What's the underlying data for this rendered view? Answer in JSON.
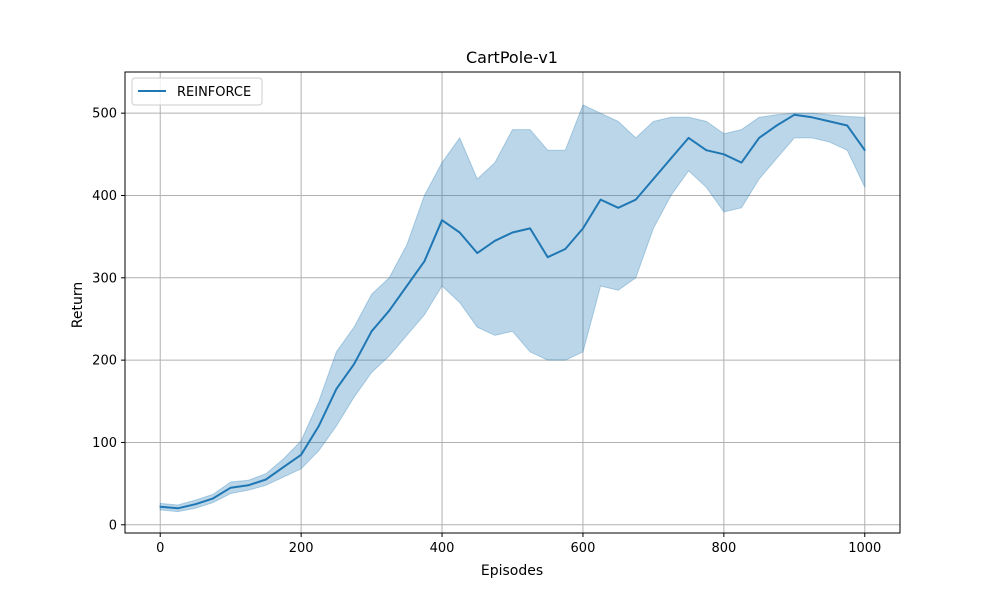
{
  "chart_data": {
    "type": "line",
    "title": "CartPole-v1",
    "xlabel": "Episodes",
    "ylabel": "Return",
    "xlim": [
      -50,
      1050
    ],
    "ylim": [
      -10,
      550
    ],
    "xticks": [
      0,
      200,
      400,
      600,
      800,
      1000
    ],
    "yticks": [
      0,
      100,
      200,
      300,
      400,
      500
    ],
    "grid": true,
    "legend_position": "top-left",
    "series": [
      {
        "name": "REINFORCE",
        "color": "#1f77b4",
        "band_color": "#1f77b4",
        "x": [
          0,
          25,
          50,
          75,
          100,
          125,
          150,
          175,
          200,
          225,
          250,
          275,
          300,
          325,
          350,
          375,
          400,
          425,
          450,
          475,
          500,
          525,
          550,
          575,
          600,
          625,
          650,
          675,
          700,
          725,
          750,
          775,
          800,
          825,
          850,
          875,
          900,
          925,
          950,
          975,
          1000
        ],
        "mean": [
          22,
          20,
          25,
          32,
          45,
          48,
          55,
          70,
          85,
          120,
          165,
          195,
          235,
          260,
          290,
          320,
          370,
          355,
          330,
          345,
          355,
          360,
          325,
          335,
          360,
          395,
          385,
          395,
          420,
          445,
          470,
          455,
          450,
          440,
          470,
          485,
          498,
          495,
          490,
          485,
          455
        ],
        "lower": [
          18,
          16,
          20,
          27,
          38,
          42,
          48,
          58,
          68,
          90,
          120,
          155,
          185,
          205,
          230,
          255,
          290,
          270,
          240,
          230,
          235,
          210,
          200,
          200,
          210,
          290,
          285,
          300,
          360,
          400,
          430,
          410,
          380,
          385,
          420,
          445,
          470,
          470,
          465,
          455,
          410
        ],
        "upper": [
          26,
          24,
          30,
          37,
          52,
          54,
          62,
          80,
          102,
          150,
          210,
          240,
          280,
          300,
          340,
          400,
          440,
          470,
          420,
          440,
          480,
          480,
          455,
          455,
          510,
          500,
          490,
          470,
          490,
          495,
          495,
          490,
          475,
          480,
          495,
          498,
          500,
          500,
          498,
          496,
          495
        ]
      }
    ]
  }
}
